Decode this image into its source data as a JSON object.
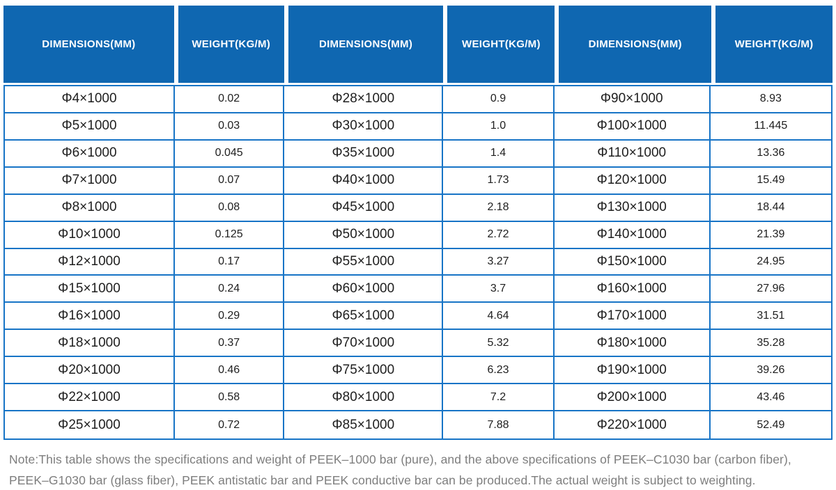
{
  "table": {
    "headers": [
      "DIMENSIONS(MM)",
      "WEIGHT(KG/M)",
      "DIMENSIONS(MM)",
      "WEIGHT(KG/M)",
      "DIMENSIONS(MM)",
      "WEIGHT(KG/M)"
    ],
    "rows": [
      [
        "Φ4×1000",
        "0.02",
        "Φ28×1000",
        "0.9",
        "Φ90×1000",
        "8.93"
      ],
      [
        "Φ5×1000",
        "0.03",
        "Φ30×1000",
        "1.0",
        "Φ100×1000",
        "11.445"
      ],
      [
        "Φ6×1000",
        "0.045",
        "Φ35×1000",
        "1.4",
        "Φ110×1000",
        "13.36"
      ],
      [
        "Φ7×1000",
        "0.07",
        "Φ40×1000",
        "1.73",
        "Φ120×1000",
        "15.49"
      ],
      [
        "Φ8×1000",
        "0.08",
        "Φ45×1000",
        "2.18",
        "Φ130×1000",
        "18.44"
      ],
      [
        "Φ10×1000",
        "0.125",
        "Φ50×1000",
        "2.72",
        "Φ140×1000",
        "21.39"
      ],
      [
        "Φ12×1000",
        "0.17",
        "Φ55×1000",
        "3.27",
        "Φ150×1000",
        "24.95"
      ],
      [
        "Φ15×1000",
        "0.24",
        "Φ60×1000",
        "3.7",
        "Φ160×1000",
        "27.96"
      ],
      [
        "Φ16×1000",
        "0.29",
        "Φ65×1000",
        "4.64",
        "Φ170×1000",
        "31.51"
      ],
      [
        "Φ18×1000",
        "0.37",
        "Φ70×1000",
        "5.32",
        "Φ180×1000",
        "35.28"
      ],
      [
        "Φ20×1000",
        "0.46",
        "Φ75×1000",
        "6.23",
        "Φ190×1000",
        "39.26"
      ],
      [
        "Φ22×1000",
        "0.58",
        "Φ80×1000",
        "7.2",
        "Φ200×1000",
        "43.46"
      ],
      [
        "Φ25×1000",
        "0.72",
        "Φ85×1000",
        "7.88",
        "Φ220×1000",
        "52.49"
      ]
    ]
  },
  "note": {
    "lines": [
      "Note:This table shows the specifications and weight of PEEK–1000 bar (pure), and the above specifications of PEEK–C1030 bar (carbon fiber),",
      "PEEK–G1030 bar (glass fiber), PEEK antistatic bar and PEEK conductive bar can be produced.The actual weight is subject to weighting."
    ]
  },
  "colors": {
    "header_bg": "#0f67b1",
    "grid_border": "#1774c6",
    "note_text": "#7e7e7e"
  }
}
